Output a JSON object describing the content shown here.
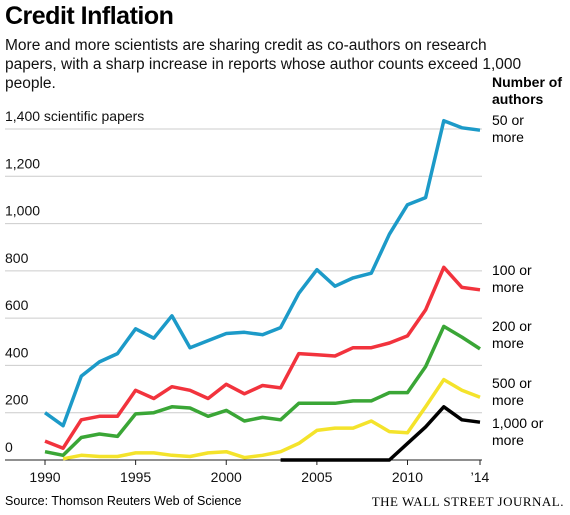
{
  "chart_data": {
    "type": "line",
    "title": "Credit Inflation",
    "subtitle": "More and more scientists are sharing credit as co-authors on research papers, with a sharp increase in reports whose author counts exceed 1,000 people.",
    "legend_title": "Number of authors",
    "source": "Source: Thomson Reuters Web of Science",
    "publisher": "THE WALL STREET JOURNAL.",
    "x": [
      1990,
      1991,
      1992,
      1993,
      1994,
      1995,
      1996,
      1997,
      1998,
      1999,
      2000,
      2001,
      2002,
      2003,
      2004,
      2005,
      2006,
      2007,
      2008,
      2009,
      2010,
      2011,
      2012,
      2013,
      2014
    ],
    "xlim": [
      1990,
      2014
    ],
    "xticks": [
      1990,
      1995,
      2000,
      2005,
      2010,
      {
        "value": 2014,
        "label": "’14"
      }
    ],
    "ylim": [
      0,
      1400
    ],
    "yticks": [
      0,
      200,
      400,
      600,
      800,
      {
        "value": 1000,
        "label": "1,000"
      },
      {
        "value": 1200,
        "label": "1,200"
      },
      {
        "value": 1400,
        "label": "1,400 scientific papers"
      }
    ],
    "grid": true,
    "series": [
      {
        "name": "50 or more",
        "color": "#1c9ac8",
        "values": [
          200,
          145,
          355,
          415,
          450,
          555,
          515,
          610,
          475,
          505,
          535,
          540,
          530,
          560,
          705,
          805,
          735,
          770,
          790,
          955,
          1080,
          1110,
          1435,
          1405,
          1395
        ]
      },
      {
        "name": "100 or more",
        "color": "#f2333d",
        "values": [
          80,
          50,
          170,
          185,
          185,
          295,
          260,
          310,
          295,
          260,
          320,
          280,
          315,
          305,
          450,
          445,
          440,
          475,
          475,
          495,
          525,
          635,
          815,
          730,
          720
        ]
      },
      {
        "name": "200 or more",
        "color": "#3aa636",
        "values": [
          35,
          20,
          95,
          110,
          100,
          195,
          200,
          225,
          220,
          185,
          210,
          165,
          180,
          170,
          240,
          240,
          240,
          250,
          250,
          285,
          285,
          395,
          565,
          520,
          470
        ]
      },
      {
        "name": "500 or more",
        "color": "#f4e32b",
        "values": [
          null,
          5,
          20,
          15,
          15,
          30,
          30,
          20,
          15,
          30,
          35,
          10,
          20,
          35,
          70,
          125,
          135,
          135,
          165,
          120,
          115,
          225,
          340,
          295,
          265
        ]
      },
      {
        "name": "1,000 or more",
        "color": "#000000",
        "values": [
          null,
          null,
          null,
          null,
          null,
          null,
          null,
          null,
          null,
          null,
          null,
          null,
          null,
          0,
          0,
          0,
          0,
          0,
          0,
          0,
          70,
          140,
          225,
          170,
          160
        ]
      }
    ]
  }
}
